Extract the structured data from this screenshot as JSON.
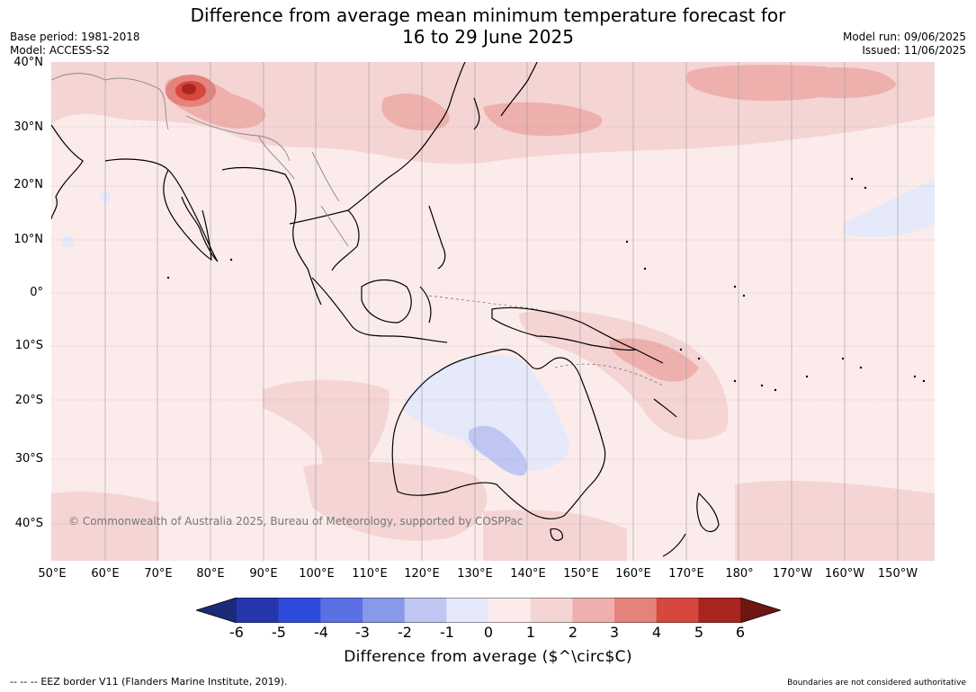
{
  "header": {
    "title_line1": "Difference from average mean minimum temperature forecast for",
    "title_line2": "16 to 29 June 2025",
    "base_period": "Base period: 1981-2018",
    "model": "Model: ACCESS-S2",
    "model_run": "Model run: 09/06/2025",
    "issued": "Issued: 11/06/2025"
  },
  "map": {
    "lat_labels": [
      "40°N",
      "30°N",
      "20°N",
      "10°N",
      "0°",
      "10°S",
      "20°S",
      "30°S",
      "40°S"
    ],
    "lon_labels": [
      "50°E",
      "60°E",
      "70°E",
      "80°E",
      "90°E",
      "100°E",
      "110°E",
      "120°E",
      "130°E",
      "140°E",
      "150°E",
      "160°E",
      "170°E",
      "180°",
      "170°W",
      "160°W",
      "150°W"
    ],
    "copyright": "© Commonwealth of Australia 2025, Bureau of Meteorology, supported by COSPPac"
  },
  "colorbar": {
    "ticks": [
      "-6",
      "-5",
      "-4",
      "-3",
      "-2",
      "-1",
      "0",
      "1",
      "2",
      "3",
      "4",
      "5",
      "6"
    ],
    "colors": [
      "#1b2a77",
      "#2636ad",
      "#2e4bdc",
      "#5b70e2",
      "#8898ea",
      "#bfc6f2",
      "#e6e9f9",
      "#fbeceb",
      "#f5d4d4",
      "#eeb0ad",
      "#e5827c",
      "#d6473d",
      "#a8261f",
      "#6e1612"
    ],
    "label": "Difference from average ($^\\circ$C)"
  },
  "footer": {
    "legend_marker": "-- -- --",
    "eez_text": "EEZ border V11 (Flanders Marine Institute, 2019).",
    "boundaries_note": "Boundaries are not considered authoritative"
  }
}
